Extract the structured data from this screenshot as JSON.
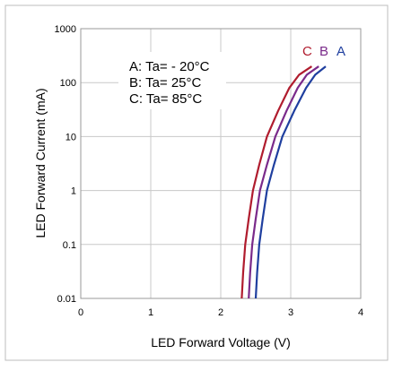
{
  "chart_data": {
    "type": "line",
    "xlabel": "LED Forward  Voltage (V)",
    "ylabel": "LED Forward Current (mA)",
    "xlim": [
      0,
      4
    ],
    "ylim": [
      0.01,
      1000
    ],
    "y_scale": "log",
    "x_ticks": [
      "0",
      "1",
      "2",
      "3",
      "4"
    ],
    "y_ticks": [
      {
        "value": 0.01,
        "label": "0.01"
      },
      {
        "value": 0.1,
        "label": "0.1"
      },
      {
        "value": 1,
        "label": "1"
      },
      {
        "value": 10,
        "label": "10"
      },
      {
        "value": 100,
        "label": "100"
      },
      {
        "value": 1000,
        "label": "1000"
      }
    ],
    "grid": true,
    "annotation_lines": [
      "A: Ta= - 20°C",
      "B: Ta=   25°C",
      "C: Ta=   85°C"
    ],
    "series": [
      {
        "name": "A",
        "color": "#1f3f9f",
        "points": [
          [
            2.5,
            0.01
          ],
          [
            2.52,
            0.03
          ],
          [
            2.55,
            0.1
          ],
          [
            2.6,
            0.3
          ],
          [
            2.66,
            1
          ],
          [
            2.76,
            3
          ],
          [
            2.88,
            10
          ],
          [
            3.05,
            30
          ],
          [
            3.22,
            80
          ],
          [
            3.35,
            140
          ],
          [
            3.5,
            200
          ]
        ]
      },
      {
        "name": "B",
        "color": "#7a2a8a",
        "points": [
          [
            2.4,
            0.01
          ],
          [
            2.42,
            0.03
          ],
          [
            2.45,
            0.1
          ],
          [
            2.5,
            0.3
          ],
          [
            2.56,
            1
          ],
          [
            2.66,
            3
          ],
          [
            2.78,
            10
          ],
          [
            2.94,
            30
          ],
          [
            3.1,
            80
          ],
          [
            3.23,
            140
          ],
          [
            3.4,
            200
          ]
        ]
      },
      {
        "name": "C",
        "color": "#b01c2e",
        "points": [
          [
            2.3,
            0.01
          ],
          [
            2.32,
            0.03
          ],
          [
            2.35,
            0.1
          ],
          [
            2.4,
            0.3
          ],
          [
            2.46,
            1
          ],
          [
            2.55,
            3
          ],
          [
            2.66,
            10
          ],
          [
            2.82,
            30
          ],
          [
            2.98,
            80
          ],
          [
            3.12,
            140
          ],
          [
            3.3,
            200
          ]
        ]
      }
    ],
    "legend_labels": [
      {
        "text": "C",
        "color": "#b01c2e"
      },
      {
        "text": "B",
        "color": "#7a2a8a"
      },
      {
        "text": "A",
        "color": "#1f3f9f"
      }
    ]
  }
}
